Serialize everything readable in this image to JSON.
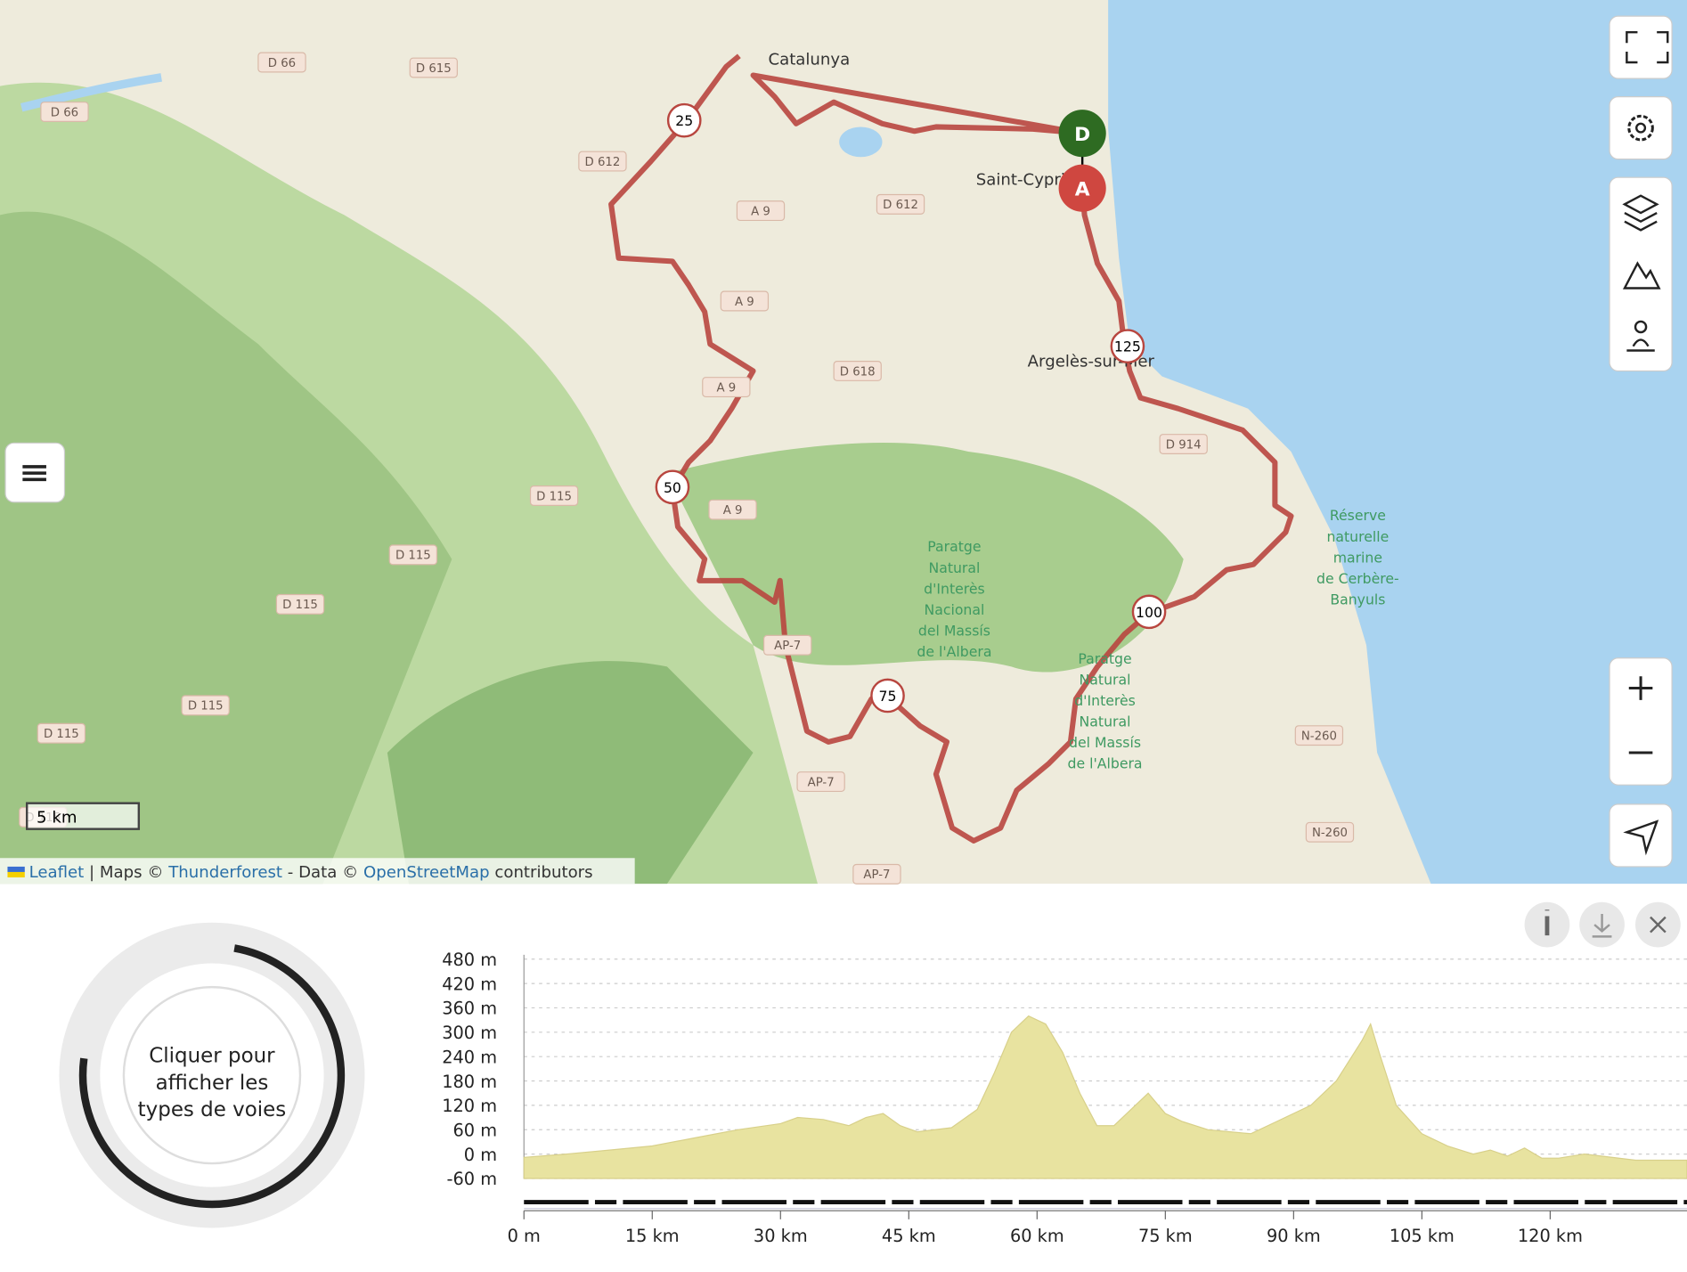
{
  "map": {
    "places": [
      "Catalunya",
      "Saint-Cyprien",
      "Argelès-sur-Mer"
    ],
    "road_labels": [
      "D 66",
      "D 66",
      "D 615",
      "D 612",
      "D 612",
      "A 9",
      "A 9",
      "A 9",
      "A 9",
      "D 618",
      "D 914",
      "D 115",
      "D 115",
      "D 115",
      "D 115",
      "D 115",
      "D 115",
      "AP-7",
      "AP-7",
      "AP-7",
      "N-260",
      "N-260"
    ],
    "reserve_marine": [
      "Réserve",
      "naturelle",
      "marine",
      "de Cerbère-",
      "Banyuls"
    ],
    "paratge": [
      "Paratge",
      "Natural",
      "d'Interès",
      "Nacional",
      "del Massís",
      "de l'Albera"
    ],
    "paratge2": [
      "Paratge",
      "Natural",
      "d'Interès",
      "Natural",
      "del Massís",
      "de l'Albera"
    ],
    "start": "D",
    "end": "A",
    "km_markers": [
      25,
      50,
      75,
      100,
      125
    ],
    "scale": "5 km",
    "attribution": [
      "Leaflet",
      " | Maps © ",
      "Thunderforest",
      " - Data © ",
      "OpenStreetMap",
      " contributors"
    ]
  },
  "donut": {
    "lines": [
      "Cliquer pour",
      "afficher les",
      "types de voies"
    ]
  },
  "chart_data": {
    "type": "area",
    "color": "#e8e3a0",
    "x": [
      0,
      5,
      10,
      15,
      20,
      25,
      30,
      32,
      35,
      38,
      40,
      42,
      44,
      46,
      50,
      53,
      55,
      57,
      59,
      61,
      63,
      65,
      67,
      69,
      71,
      73,
      75,
      77,
      80,
      85,
      88,
      92,
      95,
      98,
      99,
      100,
      102,
      105,
      108,
      111,
      113,
      115,
      117,
      119,
      121,
      124,
      126,
      130,
      134,
      136
    ],
    "values": [
      -8,
      0,
      10,
      20,
      40,
      60,
      75,
      90,
      85,
      70,
      90,
      100,
      70,
      55,
      65,
      110,
      200,
      300,
      340,
      320,
      250,
      150,
      70,
      70,
      110,
      150,
      100,
      80,
      60,
      50,
      80,
      120,
      180,
      280,
      320,
      250,
      120,
      50,
      20,
      0,
      10,
      -5,
      15,
      -10,
      -10,
      0,
      -5,
      -15,
      -15,
      -15
    ],
    "xlim": [
      0,
      136
    ],
    "ylim": [
      -60,
      480
    ],
    "yticks": [
      {
        "value": 480,
        "label": "480 m"
      },
      {
        "value": 420,
        "label": "420 m"
      },
      {
        "value": 360,
        "label": "360 m"
      },
      {
        "value": 300,
        "label": "300 m"
      },
      {
        "value": 240,
        "label": "240 m"
      },
      {
        "value": 180,
        "label": "180 m"
      },
      {
        "value": 120,
        "label": "120 m"
      },
      {
        "value": 60,
        "label": "60 m"
      },
      {
        "value": 0,
        "label": "0 m"
      },
      {
        "value": -60,
        "label": "-60 m"
      }
    ],
    "xticks": [
      {
        "value": 0,
        "label": "0 m"
      },
      {
        "value": 15,
        "label": "15 km"
      },
      {
        "value": 30,
        "label": "30 km"
      },
      {
        "value": 45,
        "label": "45 km"
      },
      {
        "value": 60,
        "label": "60 km"
      },
      {
        "value": 75,
        "label": "75 km"
      },
      {
        "value": 90,
        "label": "90 km"
      },
      {
        "value": 105,
        "label": "105 km"
      },
      {
        "value": 120,
        "label": "120 km"
      }
    ],
    "grid": true
  }
}
